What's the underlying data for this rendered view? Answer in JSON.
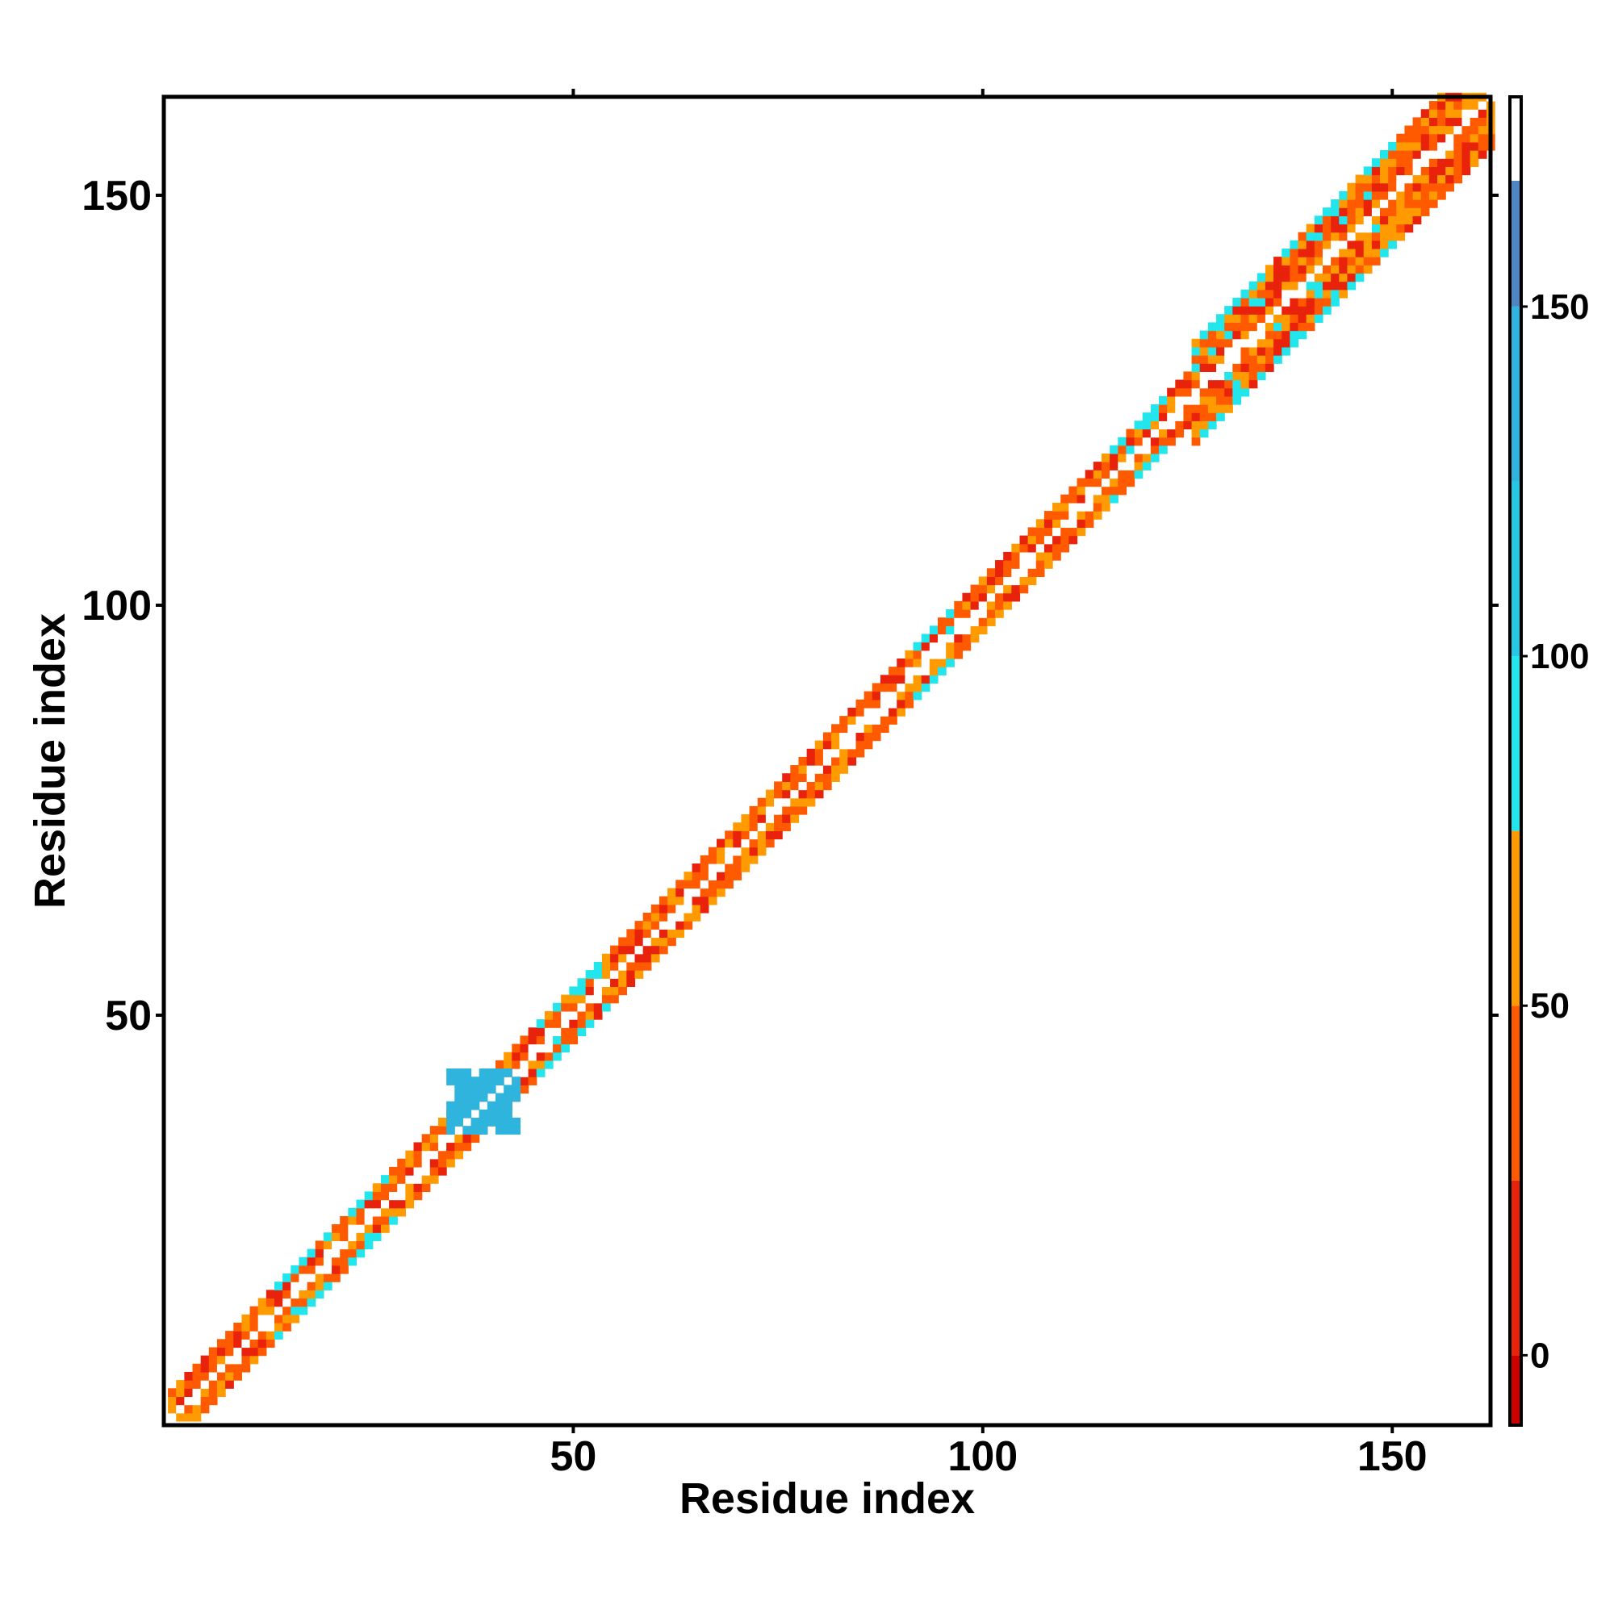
{
  "chart_data": {
    "type": "heatmap",
    "title": "",
    "xlabel": "Residue index",
    "ylabel": "Residue index",
    "xlim": [
      0,
      162
    ],
    "ylim": [
      0,
      162
    ],
    "x_ticks": [
      50,
      100,
      150
    ],
    "y_ticks": [
      50,
      100,
      150
    ],
    "colorbar": {
      "range": [
        -10,
        180
      ],
      "ticks": [
        0,
        50,
        100,
        150
      ],
      "bands": [
        {
          "from": -10,
          "to": 0,
          "color": "#cc0000"
        },
        {
          "from": 0,
          "to": 25,
          "color": "#e8220b"
        },
        {
          "from": 25,
          "to": 50,
          "color": "#ff5a00"
        },
        {
          "from": 50,
          "to": 75,
          "color": "#ff9a00"
        },
        {
          "from": 75,
          "to": 100,
          "color": "#22e6ec"
        },
        {
          "from": 100,
          "to": 125,
          "color": "#27c7e4"
        },
        {
          "from": 125,
          "to": 150,
          "color": "#2fb4dd"
        },
        {
          "from": 150,
          "to": 168,
          "color": "#4f86c2"
        },
        {
          "from": 168,
          "to": 180,
          "color": "#ffffff"
        }
      ]
    },
    "diagonal": {
      "from": 1,
      "to": 162,
      "segments": [
        {
          "from": 1,
          "to": 40,
          "half_width": 3
        },
        {
          "from": 40,
          "to": 125,
          "half_width": 3
        },
        {
          "from": 125,
          "to": 162,
          "half_width": 6
        }
      ],
      "cyan_blocks": [
        [
          14,
          20
        ],
        [
          22,
          28
        ],
        [
          46,
          54
        ],
        [
          92,
          96
        ],
        [
          116,
          122
        ],
        [
          126,
          150
        ]
      ],
      "blue_patch": {
        "x": [
          35,
          43
        ],
        "y": [
          36,
          43
        ]
      }
    }
  }
}
